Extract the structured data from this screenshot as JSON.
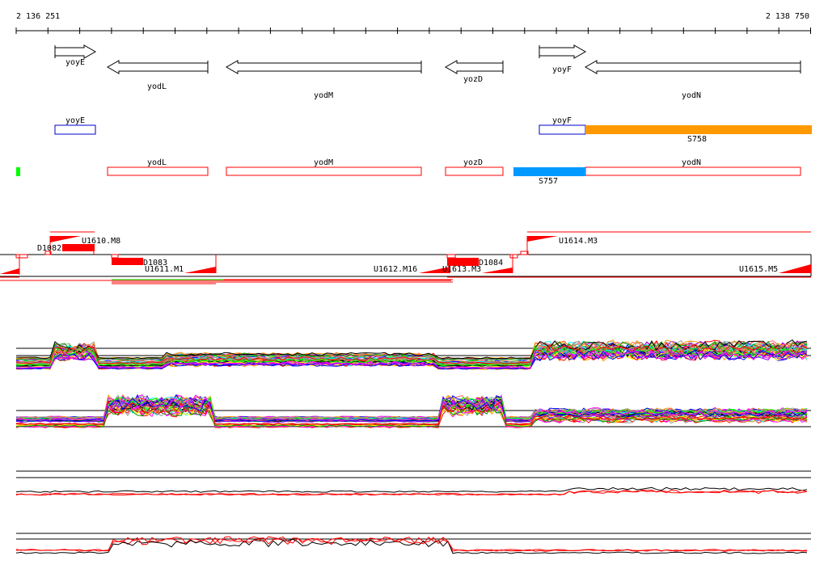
{
  "ruler": {
    "start": "2 136 251",
    "end": "2 138 750"
  },
  "genes": [
    {
      "name": "yoyE",
      "dir": "right"
    },
    {
      "name": "yodL",
      "dir": "left"
    },
    {
      "name": "yodM",
      "dir": "left"
    },
    {
      "name": "yozD",
      "dir": "left"
    },
    {
      "name": "yoyF",
      "dir": "right"
    },
    {
      "name": "yodN",
      "dir": "left"
    }
  ],
  "cds_plus": [
    {
      "name": "yoyE"
    },
    {
      "name": "yoyF"
    }
  ],
  "cds_minus": [
    {
      "name": "yodL"
    },
    {
      "name": "yodM"
    },
    {
      "name": "yozD"
    },
    {
      "name": "yodN"
    }
  ],
  "segments": {
    "s758": "S758",
    "s757": "S757"
  },
  "colors": {
    "s758": "#ff9900",
    "s757": "#0099ff",
    "feature": "#ff0000",
    "green": "#00ff00"
  },
  "transcripts": {
    "d1082": "D1082",
    "u1610": "U1610.M8",
    "d1083": "D1083",
    "u1611": "U1611.M1",
    "u1612": "U1612.M16",
    "u1613": "U1613.M3",
    "d1084": "D1084",
    "u1614": "U1614.M3",
    "u1615": "U1615.M5"
  }
}
